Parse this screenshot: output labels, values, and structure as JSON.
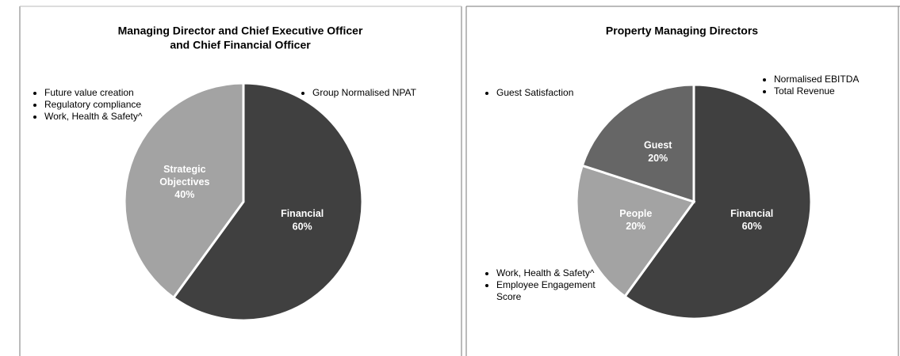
{
  "chart_data": [
    {
      "type": "pie",
      "title": [
        "Managing Director and Chief Executive Officer",
        "and Chief Financial Officer"
      ],
      "categories": [
        "Financial",
        "Strategic Objectives"
      ],
      "values": [
        60,
        40
      ],
      "value_labels": [
        "60%",
        "40%"
      ],
      "colors": [
        "#404040",
        "#a3a3a3"
      ],
      "annotations": [
        [
          "Future value creation",
          "Regulatory compliance",
          "Work, Health & Safety^"
        ],
        [
          "Group Normalised NPAT"
        ]
      ]
    },
    {
      "type": "pie",
      "title": [
        "Property Managing Directors"
      ],
      "categories": [
        "Financial",
        "People",
        "Guest"
      ],
      "values": [
        60,
        20,
        20
      ],
      "value_labels": [
        "60%",
        "20%",
        "20%"
      ],
      "colors": [
        "#404040",
        "#a3a3a3",
        "#666666"
      ],
      "annotations": [
        [
          "Guest Satisfaction"
        ],
        [
          "Normalised EBITDA",
          "Total Revenue"
        ],
        [
          "Work, Health & Safety^",
          "Employee Engagement Score"
        ]
      ]
    }
  ]
}
